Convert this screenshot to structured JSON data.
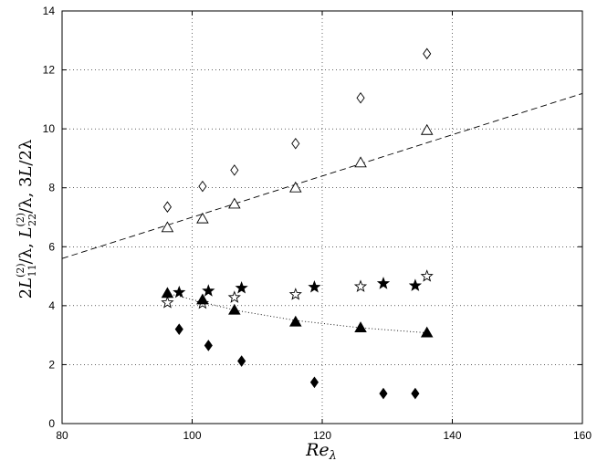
{
  "chart_data": {
    "type": "scatter",
    "title": "",
    "xlabel": "Re_λ",
    "ylabel": "2L11(2)/λ, L22(2)/λ, 3L/2λ",
    "xlim": [
      80,
      160
    ],
    "ylim": [
      0,
      14
    ],
    "xticks": [
      80,
      100,
      120,
      140,
      160
    ],
    "yticks": [
      0,
      2,
      4,
      6,
      8,
      10,
      12,
      14
    ],
    "grid": true,
    "legend": "none",
    "series": [
      {
        "marker": "diamond-open",
        "points": [
          [
            96.2,
            7.35
          ],
          [
            101.6,
            8.05
          ],
          [
            106.5,
            8.6
          ],
          [
            115.9,
            9.5
          ],
          [
            125.9,
            11.05
          ],
          [
            136.1,
            12.55
          ]
        ]
      },
      {
        "marker": "triangle-open",
        "points": [
          [
            96.2,
            6.65
          ],
          [
            101.6,
            6.95
          ],
          [
            106.5,
            7.45
          ],
          [
            115.9,
            8.0
          ],
          [
            125.9,
            8.85
          ],
          [
            136.1,
            9.95
          ]
        ]
      },
      {
        "marker": "star-filled",
        "points": [
          [
            98.0,
            4.45
          ],
          [
            102.5,
            4.5
          ],
          [
            107.6,
            4.6
          ],
          [
            118.8,
            4.63
          ],
          [
            129.4,
            4.75
          ],
          [
            134.3,
            4.68
          ]
        ]
      },
      {
        "marker": "star-open",
        "points": [
          [
            96.2,
            4.1
          ],
          [
            101.6,
            4.08
          ],
          [
            106.5,
            4.28
          ],
          [
            115.9,
            4.38
          ],
          [
            125.9,
            4.65
          ],
          [
            136.1,
            5.0
          ]
        ]
      },
      {
        "marker": "triangle-filled",
        "points": [
          [
            96.2,
            4.42
          ],
          [
            101.6,
            4.2
          ],
          [
            106.5,
            3.85
          ],
          [
            115.9,
            3.45
          ],
          [
            125.9,
            3.25
          ],
          [
            136.1,
            3.08
          ]
        ]
      },
      {
        "marker": "diamond-filled",
        "points": [
          [
            98.0,
            3.2
          ],
          [
            102.5,
            2.65
          ],
          [
            107.6,
            2.12
          ],
          [
            118.8,
            1.4
          ],
          [
            129.4,
            1.02
          ],
          [
            134.3,
            1.02
          ]
        ]
      }
    ],
    "fits": [
      {
        "style": "dashed",
        "points": [
          [
            80,
            5.6
          ],
          [
            160,
            11.2
          ]
        ]
      },
      {
        "style": "dotted",
        "points": [
          [
            96.2,
            4.42
          ],
          [
            106.5,
            3.85
          ],
          [
            115.9,
            3.5
          ],
          [
            125.9,
            3.25
          ],
          [
            136.1,
            3.08
          ]
        ]
      }
    ]
  }
}
